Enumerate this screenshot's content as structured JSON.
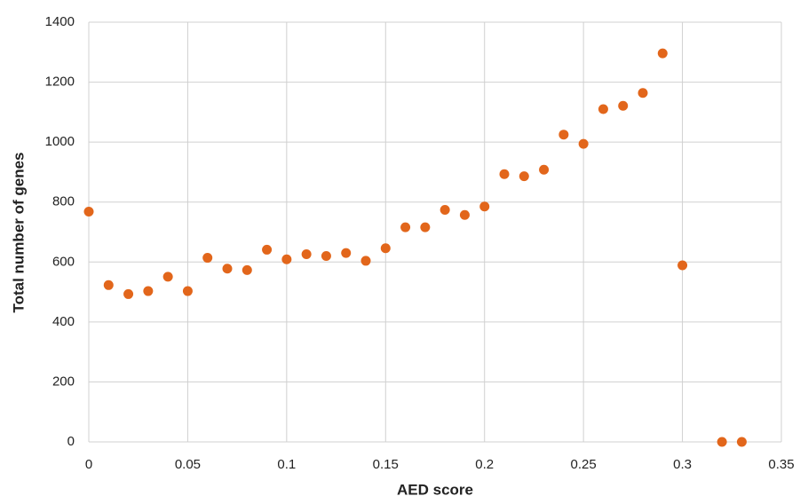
{
  "chart_data": {
    "type": "scatter",
    "x_label": "AED score",
    "y_label": "Total number of genes",
    "x": [
      0,
      0.01,
      0.02,
      0.03,
      0.04,
      0.05,
      0.06,
      0.07,
      0.08,
      0.09,
      0.1,
      0.11,
      0.12,
      0.13,
      0.14,
      0.15,
      0.16,
      0.17,
      0.18,
      0.19,
      0.2,
      0.21,
      0.22,
      0.23,
      0.24,
      0.25,
      0.26,
      0.27,
      0.28,
      0.29,
      0.3,
      0.32,
      0.33
    ],
    "values": [
      768,
      523,
      493,
      503,
      551,
      503,
      614,
      578,
      573,
      641,
      609,
      626,
      620,
      630,
      604,
      646,
      716,
      716,
      774,
      757,
      785,
      893,
      886,
      908,
      1025,
      994,
      1110,
      1121,
      1164,
      1296,
      589,
      0,
      0
    ],
    "color": "#e2661b",
    "xlim": [
      0,
      0.35
    ],
    "xticks": [
      0,
      0.05,
      0.1,
      0.15,
      0.2,
      0.25,
      0.3,
      0.35
    ],
    "ylim": [
      0,
      1400
    ],
    "yticks": [
      0,
      200,
      400,
      600,
      800,
      1000,
      1200,
      1400
    ],
    "grid": true
  }
}
